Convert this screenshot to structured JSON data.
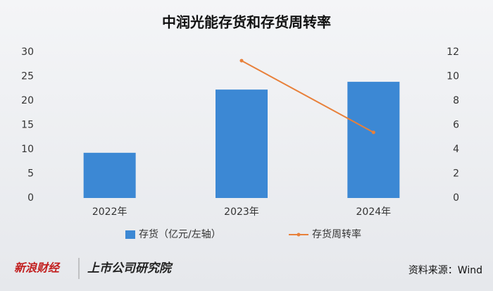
{
  "chart_data": {
    "type": "bar_line",
    "title": "中润光能存货和存货周转率",
    "categories": [
      "2022年",
      "2023年",
      "2024年"
    ],
    "series": [
      {
        "name": "存货（亿元/左轴）",
        "color": "#3c88d4",
        "values": [
          9.3,
          22.3,
          23.9
        ]
      },
      {
        "name": "存货周转率",
        "color": "#e8803a",
        "axis": "y2",
        "values": [
          null,
          11.3,
          5.4
        ]
      }
    ],
    "ylim": [
      0,
      30
    ],
    "yticks": [
      0,
      5,
      10,
      15,
      20,
      25,
      30
    ],
    "y2lim": [
      0,
      12
    ],
    "y2ticks": [
      0,
      2,
      4,
      6,
      8,
      10,
      12
    ],
    "legend": "bottom",
    "source": "资料来源：Wind",
    "footer": [
      "新浪财经",
      "上市公司研究院"
    ]
  }
}
